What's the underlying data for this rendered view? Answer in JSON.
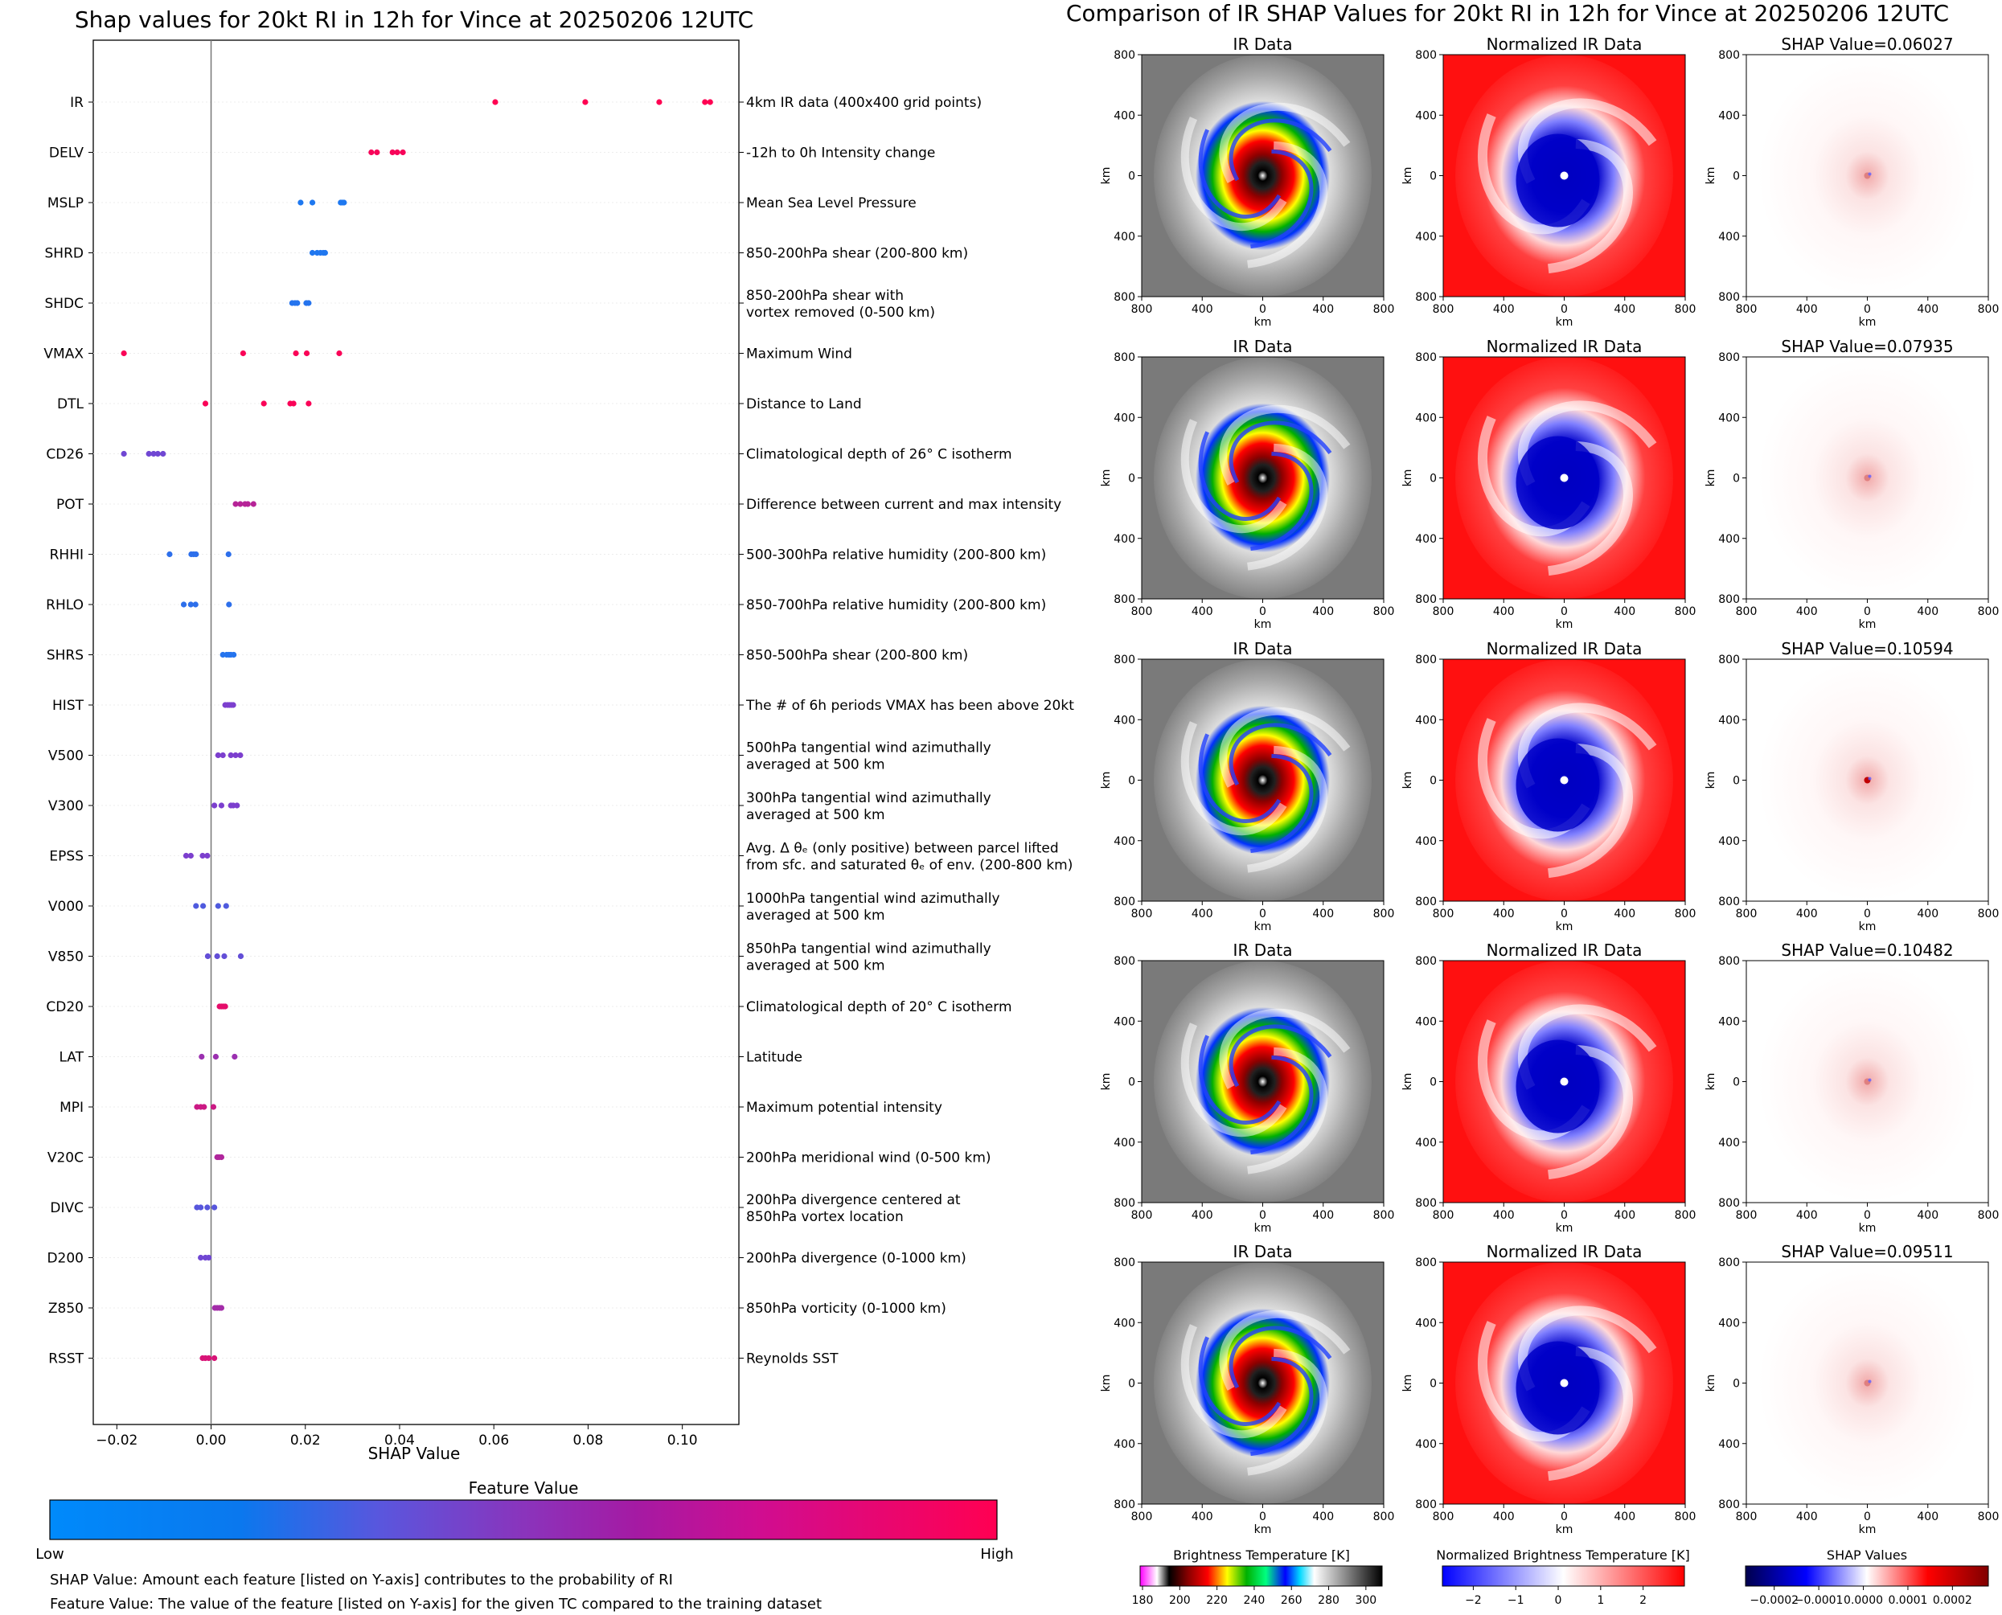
{
  "left": {
    "title": "Shap values for 20kt RI in 12h for Vince at 20250206 12UTC",
    "xlabel": "SHAP Value",
    "colorbar_title": "Feature Value",
    "colorbar_low": "Low",
    "colorbar_high": "High",
    "colors": {
      "low": "#008afb",
      "mid": "#7c3fce",
      "high": "#ff0052"
    },
    "note1": "SHAP Value: Amount each feature [listed on Y-axis] contributes to the probability of RI",
    "note2": "Feature Value: The value of the feature [listed on Y-axis] for the given TC compared to the training dataset"
  },
  "right": {
    "title": "Comparison of IR SHAP Values for 20kt RI in 12h for Vince at 20250206 12UTC",
    "col1_title": "IR Data",
    "col2_title": "Normalized IR Data",
    "shap_prefix": "SHAP Value=",
    "shap_values": [
      "0.06027",
      "0.07935",
      "0.10594",
      "0.10482",
      "0.09511"
    ],
    "axis_label": "km",
    "tick_labels": [
      "800",
      "400",
      "0",
      "400",
      "800"
    ],
    "cb1_title": "Brightness Temperature [K]",
    "cb1_ticks": [
      "180",
      "200",
      "220",
      "240",
      "260",
      "280",
      "300"
    ],
    "cb2_title": "Normalized Brightness Temperature [K]",
    "cb2_ticks": [
      "−2",
      "−1",
      "0",
      "1",
      "2"
    ],
    "cb3_title": "SHAP Values",
    "cb3_ticks": [
      "−0.0002",
      "−0.0001",
      "0.0000",
      "0.0001",
      "0.0002"
    ]
  },
  "chart_data": {
    "type": "scatter",
    "title": "Shap values for 20kt RI in 12h for Vince at 20250206 12UTC",
    "xlabel": "SHAP Value",
    "xlim": [
      -0.025,
      0.112
    ],
    "xticks": [
      -0.02,
      0.0,
      0.02,
      0.04,
      0.06,
      0.08,
      0.1
    ],
    "xtick_labels": [
      "−0.02",
      "0.00",
      "0.02",
      "0.04",
      "0.06",
      "0.08",
      "0.10"
    ],
    "features": [
      {
        "name": "IR",
        "desc": [
          "4km IR data (400x400 grid points)"
        ],
        "fv": 1.0,
        "values": [
          0.0603,
          0.0794,
          0.0951,
          0.1048,
          0.1059
        ]
      },
      {
        "name": "DELV",
        "desc": [
          "-12h to 0h Intensity change"
        ],
        "fv": 0.97,
        "values": [
          0.034,
          0.0352,
          0.0385,
          0.0395,
          0.0407
        ]
      },
      {
        "name": "MSLP",
        "desc": [
          "Mean Sea Level Pressure"
        ],
        "fv": 0.12,
        "values": [
          0.019,
          0.0215,
          0.0275,
          0.0278,
          0.0282
        ]
      },
      {
        "name": "SHRD",
        "desc": [
          "850-200hPa shear (200-800 km)"
        ],
        "fv": 0.13,
        "values": [
          0.0215,
          0.0225,
          0.0232,
          0.0238,
          0.0242
        ]
      },
      {
        "name": "SHDC",
        "desc": [
          "850-200hPa shear with",
          "vortex removed (0-500 km)"
        ],
        "fv": 0.15,
        "values": [
          0.0172,
          0.0178,
          0.0183,
          0.0202,
          0.0207
        ]
      },
      {
        "name": "VMAX",
        "desc": [
          "Maximum Wind"
        ],
        "fv": 0.98,
        "values": [
          -0.0185,
          0.0068,
          0.018,
          0.0203,
          0.0272
        ]
      },
      {
        "name": "DTL",
        "desc": [
          "Distance to Land"
        ],
        "fv": 0.98,
        "values": [
          -0.0012,
          0.0112,
          0.0168,
          0.0175,
          0.0207
        ]
      },
      {
        "name": "CD26",
        "desc": [
          "Climatological depth of 26° C isotherm"
        ],
        "fv": 0.45,
        "values": [
          -0.0185,
          -0.0132,
          -0.0122,
          -0.0113,
          -0.0102
        ]
      },
      {
        "name": "POT",
        "desc": [
          "Difference between current and max intensity"
        ],
        "fv": 0.72,
        "values": [
          0.0052,
          0.0062,
          0.0072,
          0.0078,
          0.009
        ]
      },
      {
        "name": "RHHI",
        "desc": [
          "500-300hPa relative humidity (200-800 km)"
        ],
        "fv": 0.18,
        "values": [
          -0.0088,
          -0.0042,
          -0.0037,
          -0.0032,
          0.0037
        ]
      },
      {
        "name": "RHLO",
        "desc": [
          "850-700hPa relative humidity (200-800 km)"
        ],
        "fv": 0.18,
        "values": [
          -0.0058,
          -0.0043,
          -0.0033,
          0.0038
        ]
      },
      {
        "name": "SHRS",
        "desc": [
          "850-500hPa shear (200-800 km)"
        ],
        "fv": 0.15,
        "values": [
          0.0025,
          0.0033,
          0.0038,
          0.0042,
          0.0048
        ]
      },
      {
        "name": "HIST",
        "desc": [
          "The # of 6h periods VMAX has been above 20kt"
        ],
        "fv": 0.5,
        "values": [
          0.003,
          0.0035,
          0.0039,
          0.0043,
          0.0047
        ]
      },
      {
        "name": "V500",
        "desc": [
          "500hPa tangential wind azimuthally",
          "averaged at 500 km"
        ],
        "fv": 0.5,
        "values": [
          0.0015,
          0.0025,
          0.0042,
          0.0052,
          0.0062
        ]
      },
      {
        "name": "V300",
        "desc": [
          "300hPa tangential wind azimuthally",
          "averaged at 500 km"
        ],
        "fv": 0.5,
        "values": [
          0.0007,
          0.0022,
          0.0042,
          0.0047,
          0.0055
        ]
      },
      {
        "name": "EPSS",
        "desc": [
          "Avg. Δ θₑ (only positive) between parcel lifted",
          "from sfc. and saturated θₑ of env. (200-800 km)"
        ],
        "fv": 0.5,
        "values": [
          -0.0053,
          -0.0043,
          -0.0018,
          -0.0008
        ]
      },
      {
        "name": "V000",
        "desc": [
          "1000hPa tangential wind azimuthally",
          "averaged at 500 km"
        ],
        "fv": 0.32,
        "values": [
          -0.0032,
          -0.0017,
          0.0015,
          0.0032
        ]
      },
      {
        "name": "V850",
        "desc": [
          "850hPa tangential wind azimuthally",
          "averaged at 500 km"
        ],
        "fv": 0.4,
        "values": [
          -0.0007,
          0.0013,
          0.0028,
          0.0063
        ]
      },
      {
        "name": "CD20",
        "desc": [
          "Climatological depth of 20° C isotherm"
        ],
        "fv": 0.9,
        "values": [
          0.0018,
          0.0022,
          0.0026,
          0.003
        ]
      },
      {
        "name": "LAT",
        "desc": [
          "Latitude"
        ],
        "fv": 0.62,
        "values": [
          -0.002,
          0.001,
          0.005
        ]
      },
      {
        "name": "MPI",
        "desc": [
          "Maximum potential intensity"
        ],
        "fv": 0.8,
        "values": [
          -0.003,
          -0.0022,
          -0.0015,
          0.0005
        ]
      },
      {
        "name": "V20C",
        "desc": [
          "200hPa meridional wind (0-500 km)"
        ],
        "fv": 0.7,
        "values": [
          0.0013,
          0.0017,
          0.0022
        ]
      },
      {
        "name": "DIVC",
        "desc": [
          "200hPa divergence centered at",
          "850hPa vortex location"
        ],
        "fv": 0.35,
        "values": [
          -0.003,
          -0.0022,
          -0.0008,
          0.0007
        ]
      },
      {
        "name": "D200",
        "desc": [
          "200hPa divergence (0-1000 km)"
        ],
        "fv": 0.45,
        "values": [
          -0.0022,
          -0.0012,
          -0.0005
        ]
      },
      {
        "name": "Z850",
        "desc": [
          "850hPa vorticity (0-1000 km)"
        ],
        "fv": 0.65,
        "values": [
          0.0008,
          0.0013,
          0.0018,
          0.0022
        ]
      },
      {
        "name": "RSST",
        "desc": [
          "Reynolds SST"
        ],
        "fv": 0.85,
        "values": [
          -0.0018,
          -0.0012,
          -0.0005,
          0.0007
        ]
      }
    ]
  }
}
